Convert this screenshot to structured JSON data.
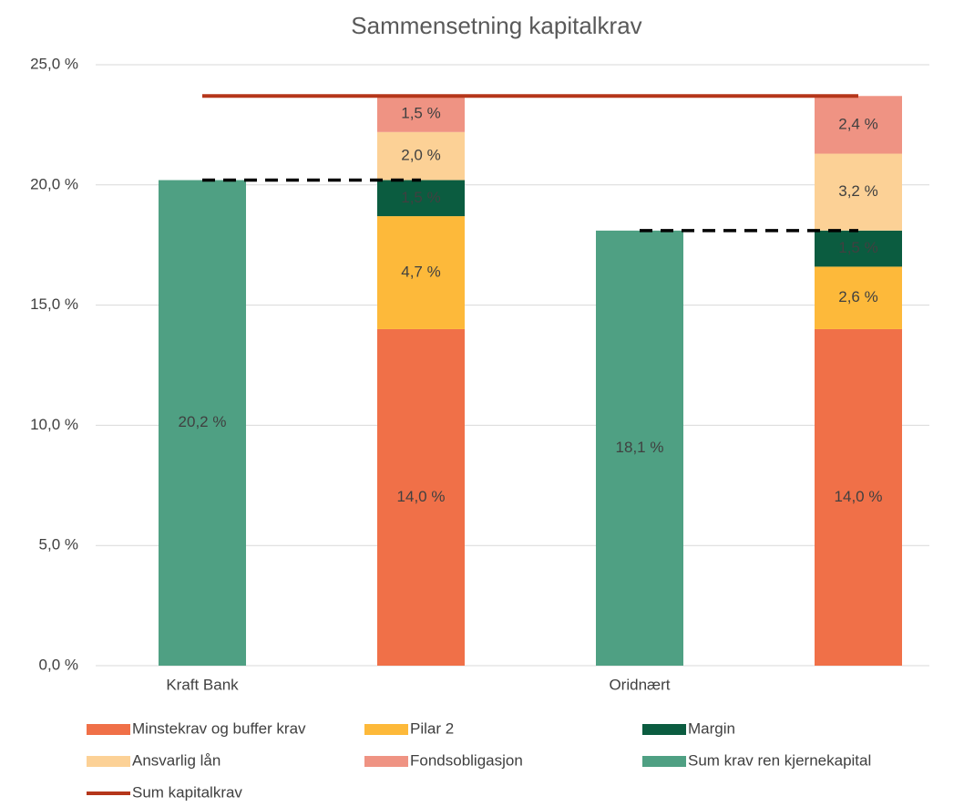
{
  "chart_data": {
    "type": "bar",
    "stacked": true,
    "title": "Sammensetning kapitalkrav",
    "categories": [
      "Kraft Bank",
      null,
      "Oridnært",
      null
    ],
    "series": [
      {
        "name": "Minstekrav og buffer krav",
        "color": "#f07048",
        "values": [
          null,
          14.0,
          null,
          14.0
        ],
        "value_labels": [
          null,
          "14,0 %",
          null,
          "14,0 %"
        ]
      },
      {
        "name": "Pilar 2",
        "color": "#fdb93a",
        "values": [
          null,
          4.7,
          null,
          2.6
        ],
        "value_labels": [
          null,
          "4,7 %",
          null,
          "2,6 %"
        ]
      },
      {
        "name": "Margin",
        "color": "#0b5c40",
        "values": [
          null,
          1.5,
          null,
          1.5
        ],
        "value_labels": [
          null,
          "1,5 %",
          null,
          "1,5 %"
        ]
      },
      {
        "name": "Ansvarlig lån",
        "color": "#fcd196",
        "values": [
          null,
          2.0,
          null,
          3.2
        ],
        "value_labels": [
          null,
          "2,0 %",
          null,
          "3,2 %"
        ]
      },
      {
        "name": "Fondsobligasjon",
        "color": "#ef9383",
        "values": [
          null,
          1.5,
          null,
          2.4
        ],
        "value_labels": [
          null,
          "1,5 %",
          null,
          "2,4 %"
        ]
      },
      {
        "name": "Sum krav ren kjernekapital",
        "color": "#4fa083",
        "values": [
          20.2,
          null,
          18.1,
          null
        ],
        "value_labels": [
          "20,2 %",
          null,
          "18,1 %",
          null
        ]
      },
      {
        "name": "Sum kapitalkrav",
        "type": "line",
        "color": "#b5361a",
        "values": [
          23.7,
          23.7,
          23.7,
          23.7
        ]
      },
      {
        "type": "line",
        "dash": true,
        "color": "#000000",
        "values": [
          20.2,
          20.2,
          null,
          null
        ]
      },
      {
        "type": "line",
        "dash": true,
        "color": "#000000",
        "values": [
          null,
          null,
          18.1,
          18.1
        ]
      }
    ],
    "ylim": [
      0,
      25
    ],
    "yticks": [
      {
        "value": 0,
        "label": "0,0 %"
      },
      {
        "value": 5,
        "label": "5,0 %"
      },
      {
        "value": 10,
        "label": "10,0 %"
      },
      {
        "value": 15,
        "label": "15,0 %"
      },
      {
        "value": 20,
        "label": "20,0 %"
      },
      {
        "value": 25,
        "label": "25,0 %"
      }
    ],
    "grid": true,
    "legend": "bottom"
  }
}
